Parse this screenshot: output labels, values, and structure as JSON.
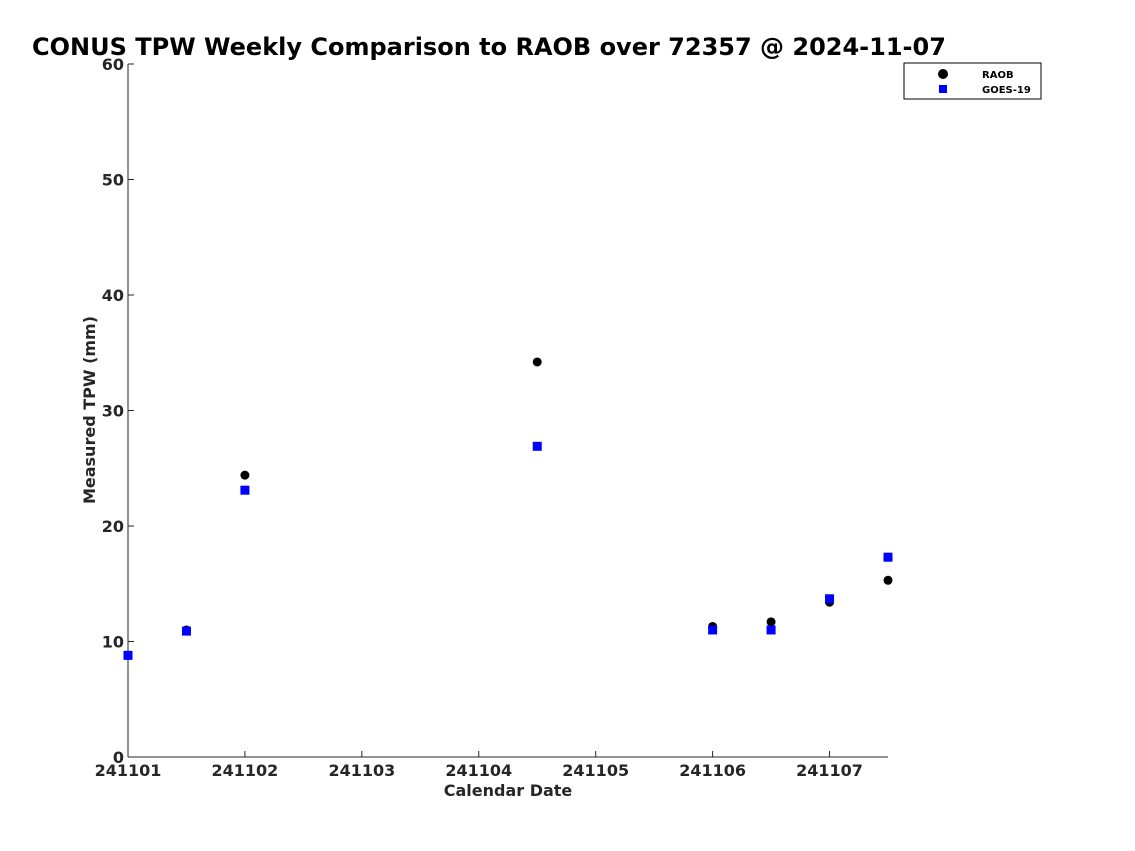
{
  "chart_data": {
    "type": "scatter",
    "title": "CONUS TPW Weekly Comparison to RAOB over 72357 @ 2024-11-07",
    "xlabel": "Calendar Date",
    "ylabel": "Measured TPW (mm)",
    "xlim": [
      0,
      6.5
    ],
    "ylim": [
      0,
      60
    ],
    "x_ticks": [
      {
        "value": 0,
        "label": "241101"
      },
      {
        "value": 1,
        "label": "241102"
      },
      {
        "value": 2,
        "label": "241103"
      },
      {
        "value": 3,
        "label": "241104"
      },
      {
        "value": 4,
        "label": "241105"
      },
      {
        "value": 5,
        "label": "241106"
      },
      {
        "value": 6,
        "label": "241107"
      }
    ],
    "y_ticks": [
      0,
      10,
      20,
      30,
      40,
      50,
      60
    ],
    "legend_position": "top-right",
    "series": [
      {
        "name": "RAOB",
        "marker": "circle",
        "color": "#000000",
        "points": [
          [
            0,
            8.8
          ],
          [
            0.5,
            11.0
          ],
          [
            1.0,
            24.4
          ],
          [
            3.5,
            34.2
          ],
          [
            5.0,
            11.3
          ],
          [
            5.5,
            11.7
          ],
          [
            6.0,
            13.4
          ],
          [
            6.5,
            15.3
          ]
        ]
      },
      {
        "name": "GOES-19",
        "marker": "square",
        "color": "#0000ff",
        "points": [
          [
            0,
            8.8
          ],
          [
            0.5,
            10.9
          ],
          [
            1.0,
            23.1
          ],
          [
            3.5,
            26.9
          ],
          [
            5.0,
            11.0
          ],
          [
            5.5,
            11.0
          ],
          [
            6.0,
            13.7
          ],
          [
            6.5,
            17.3
          ]
        ]
      }
    ]
  }
}
